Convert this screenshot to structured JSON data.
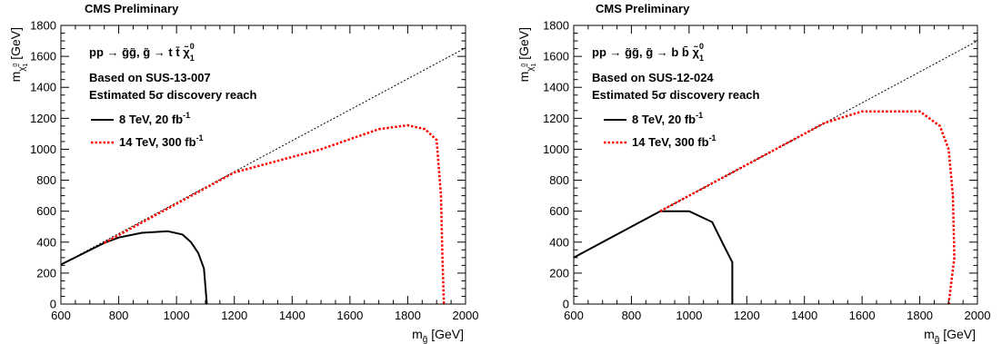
{
  "chart_data": [
    {
      "type": "line",
      "header": "CMS Preliminary",
      "process_text": "pp → g̃g̃,  g̃ → t t̄ χ̃",
      "process_sub": "1",
      "process_sup": "0",
      "analysis": "Based on SUS-13-007",
      "reach": "Estimated 5σ discovery reach",
      "xlabel": {
        "main": "m",
        "sub": "g̃",
        "unit": "[GeV]"
      },
      "ylabel": {
        "main": "m",
        "sub": "χ̃",
        "subsub": "1",
        "subsup": "0",
        "unit": "[GeV]"
      },
      "xlim": [
        600,
        2000
      ],
      "ylim": [
        0,
        1800
      ],
      "xticks": [
        600,
        800,
        1000,
        1200,
        1400,
        1600,
        1800,
        2000
      ],
      "yticks": [
        0,
        200,
        400,
        600,
        800,
        1000,
        1200,
        1400,
        1600,
        1800
      ],
      "grid": false,
      "legend_position": "upper-left",
      "kinematic_line": {
        "x": [
          600,
          2000
        ],
        "y": [
          255,
          1655
        ]
      },
      "series": [
        {
          "name": "8 TeV, 20 fb",
          "name_sup": "-1",
          "color": "#000000",
          "style": "solid",
          "x": [
            600,
            750,
            800,
            880,
            970,
            1020,
            1050,
            1075,
            1095,
            1105
          ],
          "y": [
            255,
            395,
            430,
            460,
            470,
            450,
            400,
            330,
            230,
            0
          ]
        },
        {
          "name": "14 TeV, 300 fb",
          "name_sup": "-1",
          "color": "#ff0000",
          "style": "dotted",
          "x": [
            750,
            1200,
            1500,
            1700,
            1800,
            1860,
            1900,
            1915,
            1920,
            1925
          ],
          "y": [
            395,
            850,
            1000,
            1130,
            1155,
            1130,
            1060,
            700,
            300,
            0
          ]
        }
      ]
    },
    {
      "type": "line",
      "header": "CMS Preliminary",
      "process_text": "pp → g̃g̃,  g̃ → b b̄ χ̃",
      "process_sub": "1",
      "process_sup": "0",
      "analysis": "Based on SUS-12-024",
      "reach": "Estimated 5σ discovery reach",
      "xlabel": {
        "main": "m",
        "sub": "g̃",
        "unit": "[GeV]"
      },
      "ylabel": {
        "main": "m",
        "sub": "χ̃",
        "subsub": "1",
        "subsup": "0",
        "unit": "[GeV]"
      },
      "xlim": [
        600,
        2000
      ],
      "ylim": [
        0,
        1800
      ],
      "xticks": [
        600,
        800,
        1000,
        1200,
        1400,
        1600,
        1800,
        2000
      ],
      "yticks": [
        0,
        200,
        400,
        600,
        800,
        1000,
        1200,
        1400,
        1600,
        1800
      ],
      "grid": false,
      "legend_position": "upper-left",
      "kinematic_line": {
        "x": [
          600,
          2000
        ],
        "y": [
          300,
          1700
        ]
      },
      "series": [
        {
          "name": "8 TeV, 20 fb",
          "name_sup": "-1",
          "color": "#000000",
          "style": "solid",
          "x": [
            600,
            900,
            1000,
            1080,
            1120,
            1150,
            1150
          ],
          "y": [
            300,
            600,
            600,
            530,
            380,
            270,
            0
          ]
        },
        {
          "name": "14 TeV, 300 fb",
          "name_sup": "-1",
          "color": "#ff0000",
          "style": "dotted",
          "x": [
            900,
            1470,
            1600,
            1800,
            1870,
            1900,
            1915,
            1920,
            1900
          ],
          "y": [
            600,
            1170,
            1245,
            1245,
            1150,
            1000,
            700,
            300,
            0
          ]
        }
      ]
    }
  ]
}
